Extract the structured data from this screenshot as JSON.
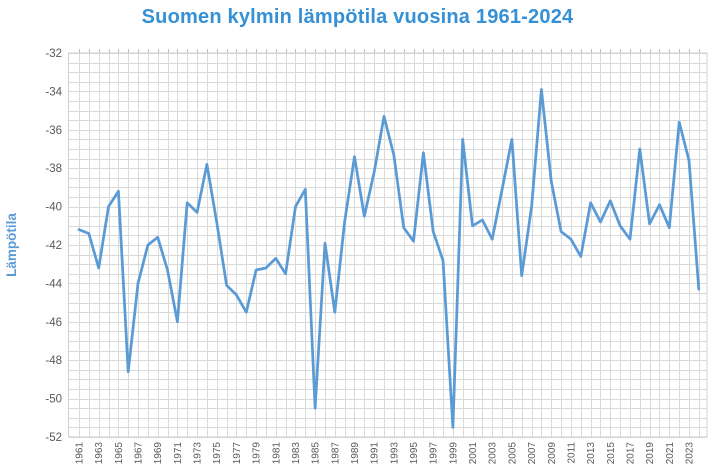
{
  "chart_data": {
    "type": "line",
    "title": "Suomen kylmin lämpötila vuosina 1961-2024",
    "ylabel": "Lämpötila",
    "xlabel": "",
    "x_start": 1961,
    "x_end": 2024,
    "x": [
      1961,
      1962,
      1963,
      1964,
      1965,
      1966,
      1967,
      1968,
      1969,
      1970,
      1971,
      1972,
      1973,
      1974,
      1975,
      1976,
      1977,
      1978,
      1979,
      1980,
      1981,
      1982,
      1983,
      1984,
      1985,
      1986,
      1987,
      1988,
      1989,
      1990,
      1991,
      1992,
      1993,
      1994,
      1995,
      1996,
      1997,
      1998,
      1999,
      2000,
      2001,
      2002,
      2003,
      2004,
      2005,
      2006,
      2007,
      2008,
      2009,
      2010,
      2011,
      2012,
      2013,
      2014,
      2015,
      2016,
      2017,
      2018,
      2019,
      2020,
      2021,
      2022,
      2023,
      2024
    ],
    "values": [
      -41.2,
      -41.4,
      -43.2,
      -40.0,
      -39.2,
      -48.6,
      -44.0,
      -42.0,
      -41.6,
      -43.3,
      -46.0,
      -39.8,
      -40.3,
      -37.8,
      -40.8,
      -44.1,
      -44.6,
      -45.5,
      -43.3,
      -43.2,
      -42.7,
      -43.5,
      -40.0,
      -39.1,
      -50.5,
      -41.9,
      -45.5,
      -40.8,
      -37.4,
      -40.5,
      -38.2,
      -35.3,
      -37.3,
      -41.1,
      -41.8,
      -37.2,
      -41.3,
      -42.8,
      -51.5,
      -36.5,
      -41.0,
      -40.7,
      -41.7,
      -39.1,
      -36.5,
      -43.6,
      -40.0,
      -33.9,
      -38.7,
      -41.3,
      -41.7,
      -42.6,
      -39.8,
      -40.8,
      -39.7,
      -41.0,
      -41.7,
      -37.0,
      -40.9,
      -39.9,
      -41.1,
      -35.6,
      -37.6,
      -44.3
    ],
    "ylim": [
      -52,
      -32
    ],
    "ytick_labels": [
      "-32",
      "-34",
      "-36",
      "-38",
      "-40",
      "-42",
      "-44",
      "-46",
      "-48",
      "-50",
      "-52"
    ],
    "ytick_values": [
      -32,
      -34,
      -36,
      -38,
      -40,
      -42,
      -44,
      -46,
      -48,
      -50,
      -52
    ],
    "minor_y_step": 0.5,
    "xtick_labels": [
      "1961",
      "1963",
      "1965",
      "1967",
      "1969",
      "1971",
      "1973",
      "1975",
      "1977",
      "1979",
      "1981",
      "1983",
      "1985",
      "1987",
      "1989",
      "1991",
      "1993",
      "1995",
      "1997",
      "1999",
      "2001",
      "2003",
      "2005",
      "2007",
      "2009",
      "2011",
      "2013",
      "2015",
      "2017",
      "2019",
      "2021",
      "2023"
    ],
    "grid": "on",
    "legend": "none"
  },
  "colors": {
    "line": "#5B9BD5",
    "title": "#3590D5",
    "y_axis_title": "#5B9BD5",
    "axis_text": "#595959",
    "gridline": "#D9D9D9",
    "plot_border": "#D0D0D0",
    "tick_mark": "#BFBFBF",
    "background": "#FFFFFF"
  }
}
